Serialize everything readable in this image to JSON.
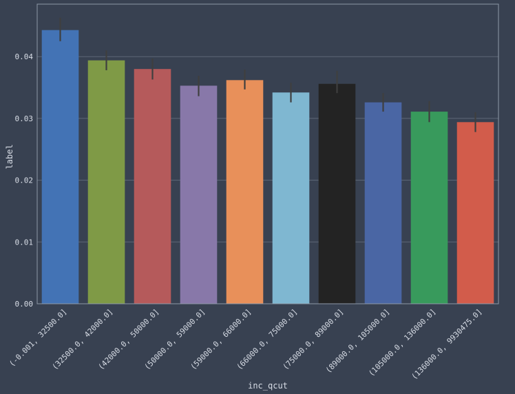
{
  "chart_data": {
    "type": "bar",
    "xlabel": "inc_qcut",
    "ylabel": "label",
    "ylim": [
      0,
      0.0485
    ],
    "yticks": [
      "0.00",
      "0.01",
      "0.02",
      "0.03",
      "0.04"
    ],
    "grid": true,
    "categories": [
      "(-0.001, 32500.0]",
      "(32500.0, 42000.0]",
      "(42000.0, 50000.0]",
      "(50000.0, 59000.0]",
      "(59000.0, 66000.0]",
      "(66000.0, 75000.0]",
      "(75000.0, 89000.0]",
      "(89000.0, 105000.0]",
      "(105000.0, 136000.0]",
      "(136000.0, 9930475.0]"
    ],
    "values": [
      0.0443,
      0.0394,
      0.038,
      0.0353,
      0.0362,
      0.0342,
      0.0356,
      0.0326,
      0.0311,
      0.0294
    ],
    "error_low": [
      0.0425,
      0.0378,
      0.0363,
      0.0336,
      0.0347,
      0.0326,
      0.0341,
      0.0311,
      0.0294,
      0.0278
    ],
    "error_high": [
      0.0463,
      0.041,
      0.0397,
      0.0369,
      0.0379,
      0.0358,
      0.0377,
      0.0341,
      0.0328,
      0.031
    ],
    "colors": [
      "#4373b5",
      "#7f9a46",
      "#b55a5b",
      "#8878a9",
      "#e8905a",
      "#7fb7d1",
      "#232323",
      "#4a66a4",
      "#389a5c",
      "#d25c4b"
    ]
  }
}
